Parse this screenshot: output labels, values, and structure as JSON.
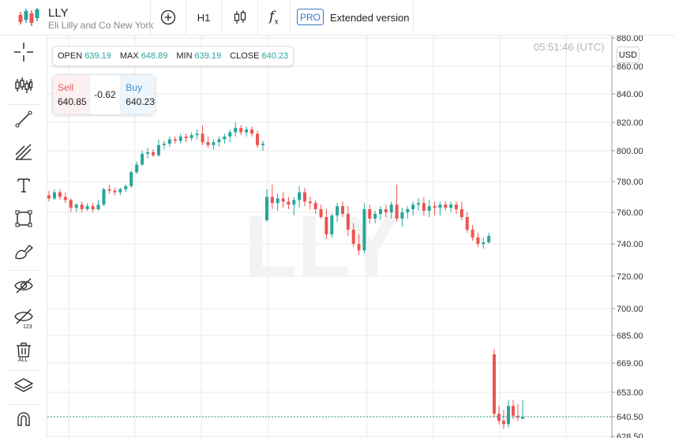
{
  "header": {
    "symbol": "LLY",
    "name": "Eli Lilly and Co New York",
    "timeframe": "H1",
    "pro_badge": "PRO",
    "extended_label": "Extended version"
  },
  "ohlc": {
    "open_label": "OPEN",
    "open": "639.19",
    "max_label": "MAX",
    "max": "648.89",
    "min_label": "MIN",
    "min": "639.19",
    "close_label": "CLOSE",
    "close": "640.23"
  },
  "trade": {
    "sell_label": "Sell",
    "sell_price": "640.85",
    "spread": "-0.62",
    "buy_label": "Buy",
    "buy_price": "640.23"
  },
  "clock": "05:51:46 (UTC)",
  "currency": "USD",
  "watermark": "LLY",
  "sidebar_tools": [
    "crosshair-icon",
    "indicators-icon",
    "trend-line-icon",
    "fib-icon",
    "text-icon",
    "rectangle-icon",
    "brush-icon",
    "hide-drawings-icon",
    "hide-values-icon",
    "delete-all-icon",
    "layers-icon",
    "magnet-icon"
  ],
  "colors": {
    "up": "#26a69a",
    "down": "#ef5350",
    "price_line": "#26a69a"
  },
  "chart_data": {
    "type": "candlestick",
    "y_ticks": [
      "880.00",
      "860.00",
      "840.00",
      "820.00",
      "800.00",
      "780.00",
      "760.00",
      "740.00",
      "720.00",
      "700.00",
      "685.00",
      "669.00",
      "653.00",
      "640.50",
      "628.50"
    ],
    "current_price": "640.50",
    "grid": true,
    "candles": [
      [
        771,
        774,
        767,
        769
      ],
      [
        769,
        775,
        768,
        773
      ],
      [
        773,
        775,
        768,
        770
      ],
      [
        770,
        773,
        766,
        768
      ],
      [
        768,
        769,
        760,
        763
      ],
      [
        763,
        766,
        760,
        765
      ],
      [
        765,
        767,
        760,
        762
      ],
      [
        762,
        766,
        761,
        764
      ],
      [
        764,
        766,
        760,
        762
      ],
      [
        762,
        768,
        761,
        765
      ],
      [
        765,
        776,
        764,
        775
      ],
      [
        775,
        778,
        772,
        774
      ],
      [
        774,
        776,
        771,
        773
      ],
      [
        773,
        776,
        771,
        775
      ],
      [
        775,
        778,
        773,
        777
      ],
      [
        777,
        787,
        776,
        786
      ],
      [
        786,
        793,
        785,
        791
      ],
      [
        791,
        800,
        790,
        798
      ],
      [
        798,
        802,
        795,
        799
      ],
      [
        799,
        801,
        796,
        797
      ],
      [
        797,
        808,
        796,
        804
      ],
      [
        804,
        807,
        801,
        805
      ],
      [
        805,
        810,
        803,
        808
      ],
      [
        808,
        810,
        805,
        807
      ],
      [
        807,
        812,
        805,
        810
      ],
      [
        810,
        812,
        806,
        809
      ],
      [
        809,
        813,
        807,
        811
      ],
      [
        811,
        815,
        808,
        812
      ],
      [
        812,
        818,
        804,
        806
      ],
      [
        806,
        810,
        802,
        804
      ],
      [
        804,
        808,
        801,
        806
      ],
      [
        806,
        810,
        803,
        808
      ],
      [
        808,
        812,
        805,
        810
      ],
      [
        810,
        815,
        806,
        813
      ],
      [
        813,
        820,
        810,
        816
      ],
      [
        816,
        818,
        811,
        813
      ],
      [
        813,
        817,
        810,
        815
      ],
      [
        815,
        817,
        810,
        812
      ],
      [
        812,
        814,
        802,
        804
      ],
      [
        804,
        807,
        800,
        805
      ],
      [
        755,
        775,
        754,
        770
      ],
      [
        770,
        778,
        762,
        766
      ],
      [
        766,
        772,
        761,
        769
      ],
      [
        769,
        773,
        763,
        767
      ],
      [
        767,
        770,
        762,
        765
      ],
      [
        765,
        770,
        758,
        768
      ],
      [
        768,
        777,
        763,
        773
      ],
      [
        773,
        776,
        764,
        767
      ],
      [
        767,
        770,
        762,
        766
      ],
      [
        766,
        768,
        759,
        762
      ],
      [
        762,
        765,
        756,
        757
      ],
      [
        757,
        762,
        743,
        746
      ],
      [
        746,
        759,
        744,
        758
      ],
      [
        758,
        766,
        754,
        764
      ],
      [
        764,
        767,
        757,
        759
      ],
      [
        759,
        764,
        745,
        749
      ],
      [
        749,
        753,
        738,
        740
      ],
      [
        740,
        746,
        733,
        736
      ],
      [
        736,
        766,
        734,
        762
      ],
      [
        762,
        765,
        753,
        756
      ],
      [
        756,
        761,
        753,
        759
      ],
      [
        759,
        764,
        755,
        762
      ],
      [
        762,
        765,
        757,
        760
      ],
      [
        760,
        767,
        756,
        765
      ],
      [
        765,
        778,
        754,
        756
      ],
      [
        756,
        763,
        751,
        760
      ],
      [
        760,
        764,
        756,
        762
      ],
      [
        762,
        767,
        758,
        765
      ],
      [
        765,
        769,
        761,
        766
      ],
      [
        766,
        770,
        758,
        761
      ],
      [
        761,
        768,
        757,
        764
      ],
      [
        764,
        767,
        758,
        763
      ],
      [
        763,
        767,
        758,
        765
      ],
      [
        765,
        767,
        761,
        763
      ],
      [
        763,
        767,
        760,
        765
      ],
      [
        765,
        767,
        759,
        762
      ],
      [
        762,
        767,
        755,
        757
      ],
      [
        757,
        760,
        747,
        749
      ],
      [
        749,
        752,
        742,
        744
      ],
      [
        744,
        747,
        738,
        740
      ],
      [
        740,
        744,
        737,
        741
      ],
      [
        741,
        747,
        740,
        745
      ],
      [
        674,
        677,
        640,
        642
      ],
      [
        642,
        646,
        636,
        638
      ],
      [
        638,
        644,
        633,
        636
      ],
      [
        636,
        649,
        634,
        646
      ],
      [
        646,
        649,
        639,
        641
      ],
      [
        641,
        647,
        638,
        640
      ],
      [
        639.19,
        648.89,
        639.19,
        640.23
      ]
    ]
  }
}
